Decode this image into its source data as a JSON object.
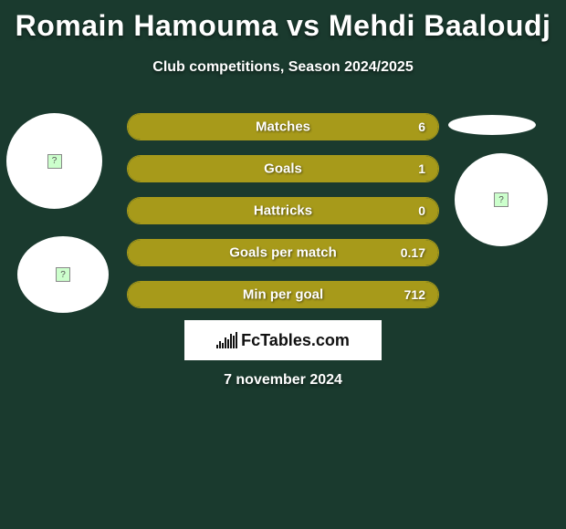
{
  "title": "Romain Hamouma vs Mehdi Baaloudj",
  "subtitle": "Club competitions, Season 2024/2025",
  "date": "7 november 2024",
  "logo_text": "FcTables.com",
  "colors": {
    "background": "#1a3a2e",
    "bar_fill": "#a79a1a",
    "bar_border": "#a79a1a",
    "text": "#ffffff",
    "logo_bg": "#ffffff",
    "logo_text": "#111111"
  },
  "stats": [
    {
      "label": "Matches",
      "value": "6",
      "fill_pct": 100
    },
    {
      "label": "Goals",
      "value": "1",
      "fill_pct": 100
    },
    {
      "label": "Hattricks",
      "value": "0",
      "fill_pct": 100
    },
    {
      "label": "Goals per match",
      "value": "0.17",
      "fill_pct": 100
    },
    {
      "label": "Min per goal",
      "value": "712",
      "fill_pct": 100
    }
  ],
  "avatars": {
    "tl_icon": "image-placeholder-icon",
    "bl_icon": "image-placeholder-icon",
    "tr_icon": "",
    "br_icon": "image-placeholder-icon"
  }
}
